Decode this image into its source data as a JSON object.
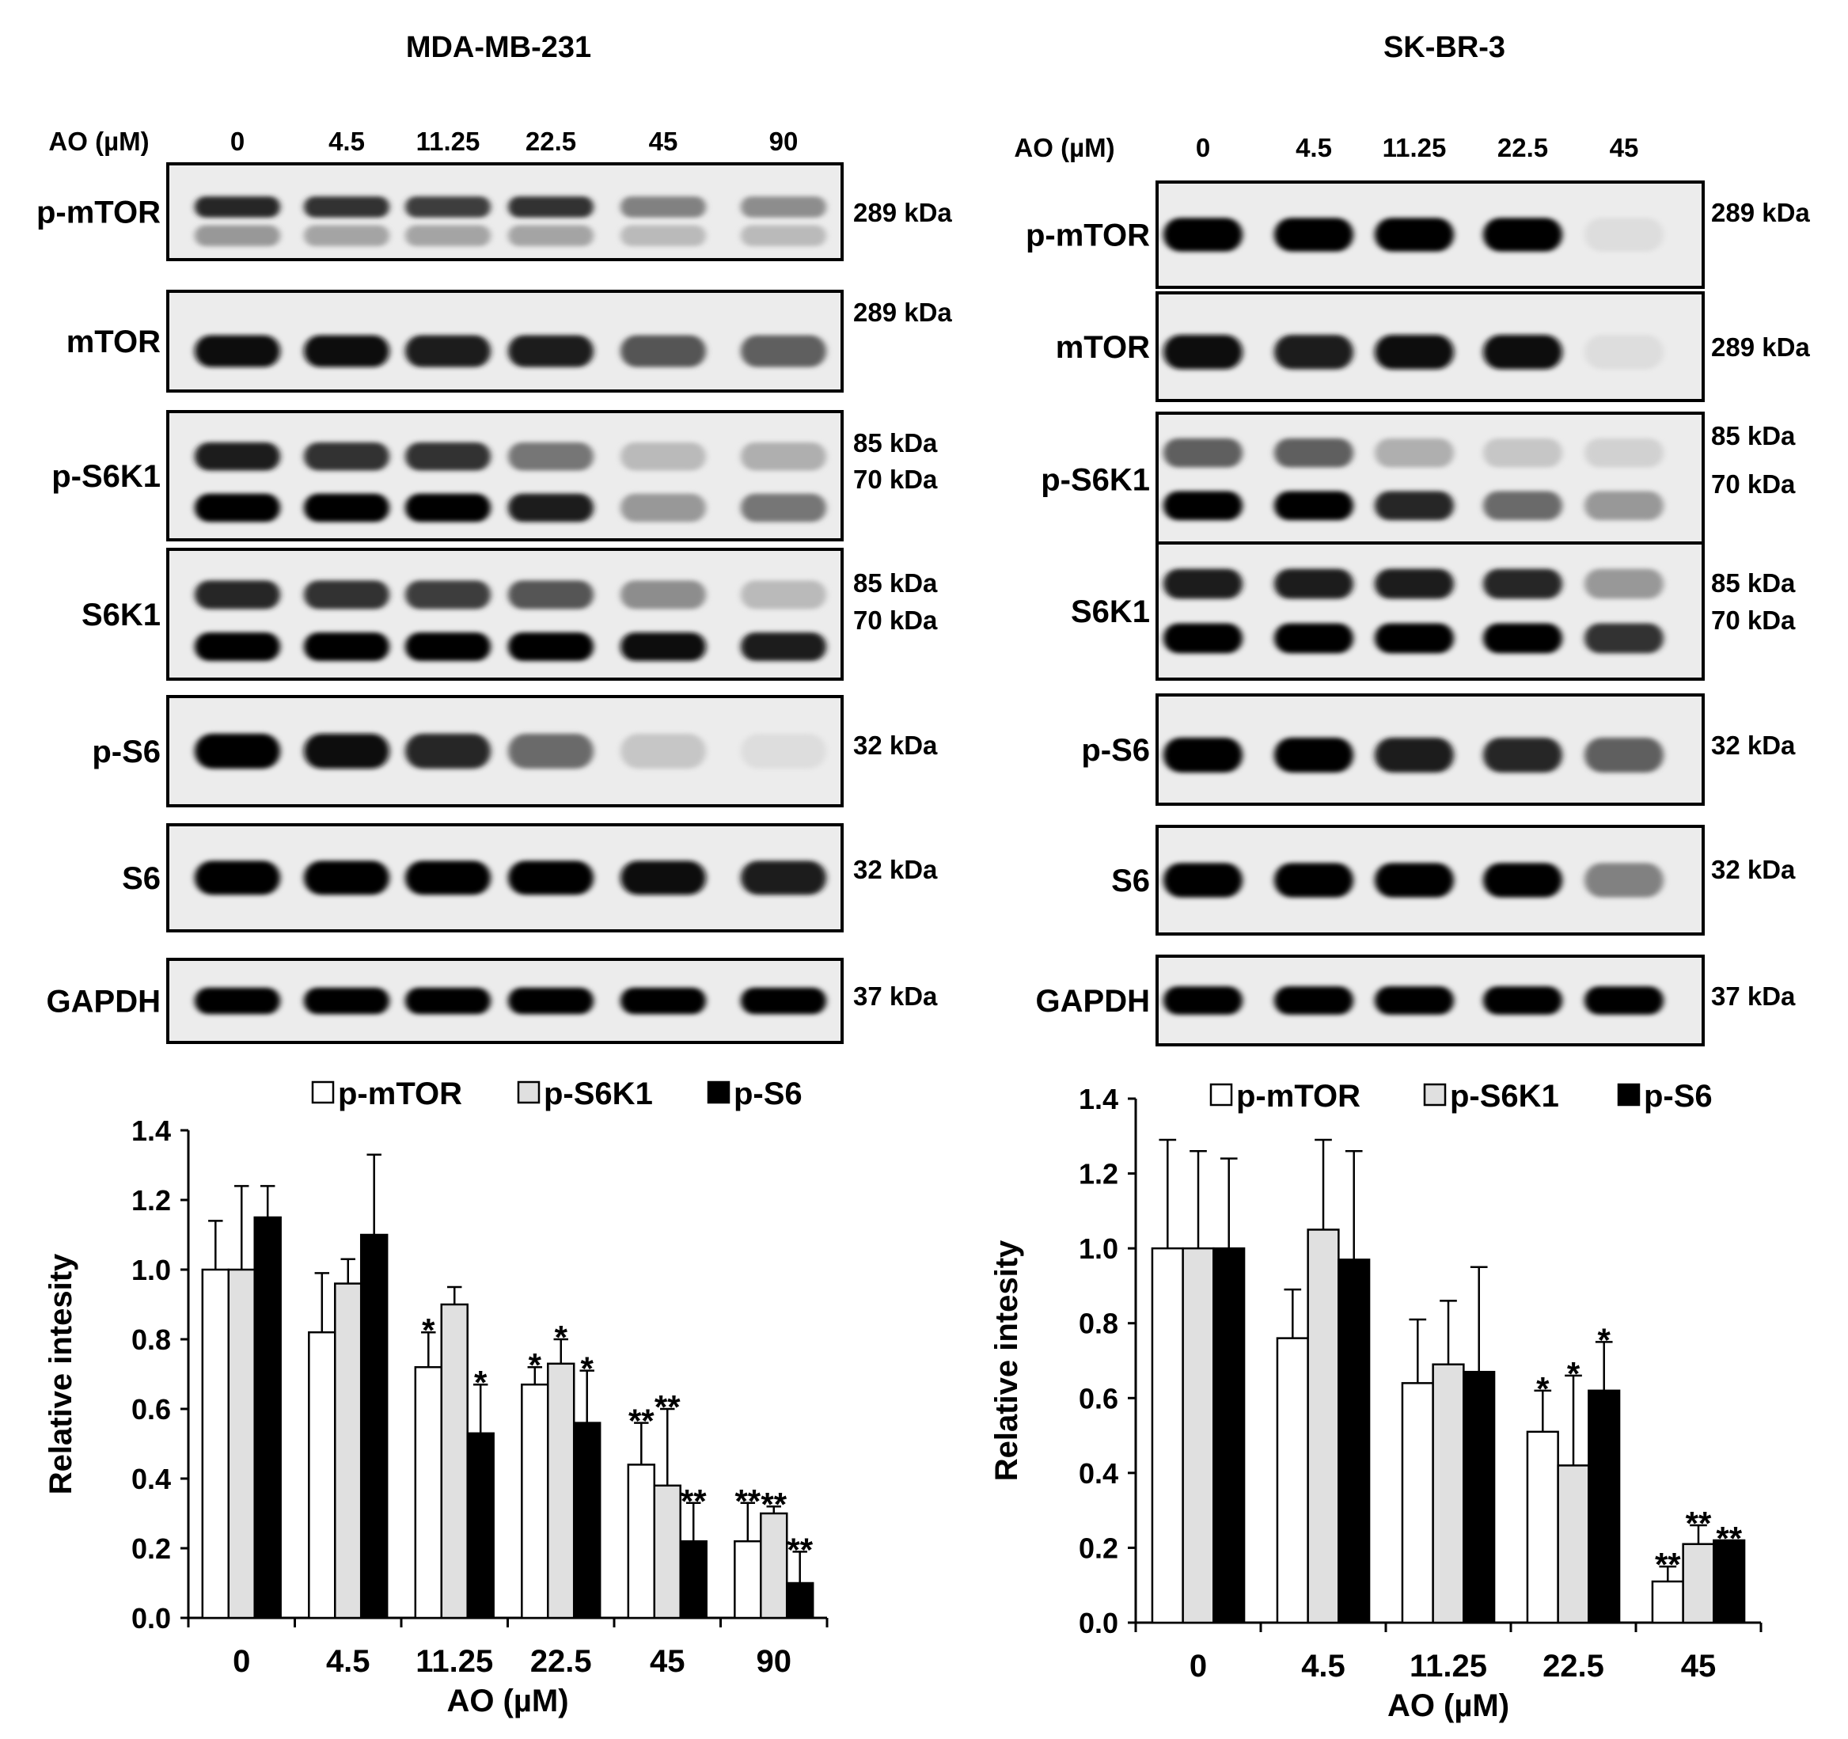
{
  "panels": [
    {
      "title": "MDA-MB-231",
      "dose_label": "AO (µM)",
      "doses": [
        "0",
        "4.5",
        "11.25",
        "22.5",
        "45",
        "90"
      ],
      "blots": [
        {
          "protein": "p-mTOR",
          "markers": [
            "289 kDa"
          ],
          "bands": [
            {
              "pos": 0.45,
              "intensity": [
                0.85,
                0.8,
                0.75,
                0.8,
                0.45,
                0.4
              ]
            },
            {
              "pos": 0.75,
              "intensity": [
                0.35,
                0.3,
                0.3,
                0.3,
                0.2,
                0.2
              ]
            }
          ]
        },
        {
          "protein": "mTOR",
          "markers": [
            "289 kDa"
          ],
          "bands": [
            {
              "pos": 0.6,
              "intensity": [
                0.95,
                0.95,
                0.9,
                0.9,
                0.65,
                0.6
              ]
            }
          ]
        },
        {
          "protein": "p-S6K1",
          "markers": [
            "85 kDa",
            "70 kDa"
          ],
          "bands": [
            {
              "pos": 0.35,
              "intensity": [
                0.9,
                0.8,
                0.8,
                0.5,
                0.2,
                0.25
              ]
            },
            {
              "pos": 0.75,
              "intensity": [
                1.0,
                1.0,
                1.0,
                0.9,
                0.35,
                0.5
              ]
            }
          ]
        },
        {
          "protein": "S6K1",
          "markers": [
            "85 kDa",
            "70 kDa"
          ],
          "bands": [
            {
              "pos": 0.35,
              "intensity": [
                0.85,
                0.8,
                0.75,
                0.65,
                0.4,
                0.2
              ]
            },
            {
              "pos": 0.75,
              "intensity": [
                1.0,
                1.0,
                1.0,
                1.0,
                0.95,
                0.9
              ]
            }
          ]
        },
        {
          "protein": "p-S6",
          "markers": [
            "32 kDa"
          ],
          "bands": [
            {
              "pos": 0.5,
              "intensity": [
                1.0,
                0.95,
                0.85,
                0.55,
                0.15,
                0.05
              ]
            }
          ]
        },
        {
          "protein": "S6",
          "markers": [
            "32 kDa"
          ],
          "bands": [
            {
              "pos": 0.5,
              "intensity": [
                1.0,
                1.0,
                1.0,
                1.0,
                0.95,
                0.9
              ]
            }
          ]
        },
        {
          "protein": "GAPDH",
          "markers": [
            "37 kDa"
          ],
          "bands": [
            {
              "pos": 0.5,
              "intensity": [
                1.0,
                1.0,
                1.0,
                1.0,
                1.0,
                1.0
              ]
            }
          ]
        }
      ]
    },
    {
      "title": "SK-BR-3",
      "dose_label": "AO (µM)",
      "doses": [
        "0",
        "4.5",
        "11.25",
        "22.5",
        "45"
      ],
      "blots": [
        {
          "protein": "p-mTOR",
          "markers": [
            "289 kDa"
          ],
          "bands": [
            {
              "pos": 0.5,
              "intensity": [
                1.0,
                1.0,
                1.0,
                1.0,
                0.05
              ]
            }
          ]
        },
        {
          "protein": "mTOR",
          "markers": [
            "289 kDa"
          ],
          "bands": [
            {
              "pos": 0.55,
              "intensity": [
                0.95,
                0.9,
                0.95,
                0.95,
                0.05
              ]
            }
          ]
        },
        {
          "protein": "p-S6K1",
          "markers": [
            "85 kDa",
            "70 kDa"
          ],
          "bands": [
            {
              "pos": 0.3,
              "intensity": [
                0.6,
                0.6,
                0.25,
                0.15,
                0.1
              ]
            },
            {
              "pos": 0.7,
              "intensity": [
                1.0,
                1.0,
                0.85,
                0.55,
                0.35
              ]
            }
          ]
        },
        {
          "protein": "S6K1",
          "markers": [
            "85 kDa",
            "70 kDa"
          ],
          "bands": [
            {
              "pos": 0.3,
              "intensity": [
                0.9,
                0.9,
                0.9,
                0.85,
                0.35
              ]
            },
            {
              "pos": 0.7,
              "intensity": [
                1.0,
                1.0,
                1.0,
                1.0,
                0.8
              ]
            }
          ]
        },
        {
          "protein": "p-S6",
          "markers": [
            "32 kDa"
          ],
          "bands": [
            {
              "pos": 0.55,
              "intensity": [
                1.0,
                1.0,
                0.9,
                0.85,
                0.6
              ]
            }
          ]
        },
        {
          "protein": "S6",
          "markers": [
            "32 kDa"
          ],
          "bands": [
            {
              "pos": 0.5,
              "intensity": [
                1.0,
                1.0,
                1.0,
                1.0,
                0.45
              ]
            }
          ]
        },
        {
          "protein": "GAPDH",
          "markers": [
            "37 kDa"
          ],
          "bands": [
            {
              "pos": 0.5,
              "intensity": [
                1.0,
                1.0,
                1.0,
                1.0,
                1.0
              ]
            }
          ]
        }
      ]
    }
  ],
  "chart_data": [
    {
      "type": "bar",
      "categories": [
        "0",
        "4.5",
        "11.25",
        "22.5",
        "45",
        "90"
      ],
      "xlabel": "AO (µM)",
      "ylabel": "Relative intesity",
      "ylim": [
        0,
        1.4
      ],
      "yticks": [
        "0.0",
        "0.2",
        "0.4",
        "0.6",
        "0.8",
        "1.0",
        "1.2",
        "1.4"
      ],
      "legend": "top",
      "series": [
        {
          "name": "p-mTOR",
          "color": "#ffffff",
          "values": [
            1.0,
            0.82,
            0.72,
            0.67,
            0.44,
            0.22
          ],
          "errors": [
            0.14,
            0.17,
            0.1,
            0.05,
            0.12,
            0.11
          ],
          "sig": [
            "",
            "",
            "*",
            "*",
            "**",
            "**"
          ]
        },
        {
          "name": "p-S6K1",
          "color": "#e0e0e0",
          "values": [
            1.0,
            0.96,
            0.9,
            0.73,
            0.38,
            0.3
          ],
          "errors": [
            0.24,
            0.07,
            0.05,
            0.07,
            0.22,
            0.02
          ],
          "sig": [
            "",
            "",
            "",
            "*",
            "**",
            "**"
          ]
        },
        {
          "name": "p-S6",
          "color": "#000000",
          "values": [
            1.15,
            1.1,
            0.53,
            0.56,
            0.22,
            0.1
          ],
          "errors": [
            0.09,
            0.23,
            0.14,
            0.15,
            0.11,
            0.09
          ],
          "sig": [
            "",
            "",
            "*",
            "*",
            "**",
            "**"
          ]
        }
      ]
    },
    {
      "type": "bar",
      "categories": [
        "0",
        "4.5",
        "11.25",
        "22.5",
        "45"
      ],
      "xlabel": "AO (µM)",
      "ylabel": "Relative intesity",
      "ylim": [
        0,
        1.4
      ],
      "yticks": [
        "0.0",
        "0.2",
        "0.4",
        "0.6",
        "0.8",
        "1.0",
        "1.2",
        "1.4"
      ],
      "legend": "top",
      "series": [
        {
          "name": "p-mTOR",
          "color": "#ffffff",
          "values": [
            1.0,
            0.76,
            0.64,
            0.51,
            0.11
          ],
          "errors": [
            0.29,
            0.13,
            0.17,
            0.11,
            0.04
          ],
          "sig": [
            "",
            "",
            "",
            "*",
            "**"
          ]
        },
        {
          "name": "p-S6K1",
          "color": "#e0e0e0",
          "values": [
            1.0,
            1.05,
            0.69,
            0.42,
            0.21
          ],
          "errors": [
            0.26,
            0.24,
            0.17,
            0.24,
            0.05
          ],
          "sig": [
            "",
            "",
            "",
            "*",
            "**"
          ]
        },
        {
          "name": "p-S6",
          "color": "#000000",
          "values": [
            1.0,
            0.97,
            0.67,
            0.62,
            0.22
          ],
          "errors": [
            0.24,
            0.29,
            0.28,
            0.13,
            0.0
          ],
          "sig": [
            "",
            "",
            "",
            "*",
            "**"
          ]
        }
      ]
    }
  ]
}
